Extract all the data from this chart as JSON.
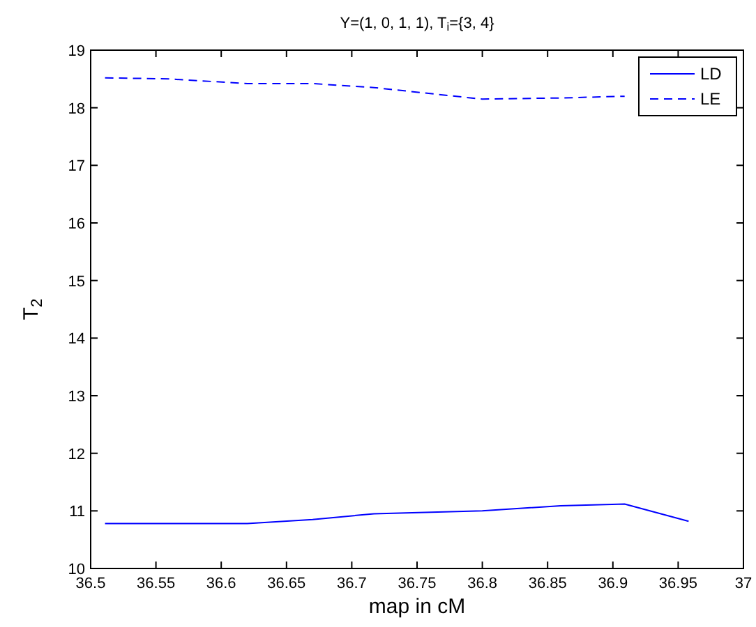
{
  "chart_data": {
    "type": "line",
    "title": "Y=(1, 0, 1, 1), T$_{i}$={3, 4}",
    "xlabel": "map in cM",
    "ylabel": "T$_{2}$",
    "x": [
      36.511,
      36.56,
      36.62,
      36.67,
      36.717,
      36.8,
      36.86,
      36.909,
      36.958
    ],
    "series": [
      {
        "name": "LD",
        "color": "#0000ff",
        "line_style": "solid",
        "values": [
          10.78,
          10.78,
          10.78,
          10.85,
          10.95,
          11.0,
          11.09,
          11.12,
          10.82
        ]
      },
      {
        "name": "LE",
        "color": "#0000ff",
        "line_style": "dashed",
        "values": [
          18.52,
          18.5,
          18.42,
          18.42,
          18.35,
          18.15,
          18.17,
          18.2,
          null
        ]
      }
    ],
    "xlim": [
      36.5,
      37
    ],
    "xticks": [
      {
        "value": 36.5,
        "label": "36.5"
      },
      36.55,
      36.6,
      36.65,
      36.7,
      36.75,
      36.8,
      36.85,
      36.9,
      36.95,
      {
        "value": 37,
        "label": "37"
      }
    ],
    "ylim": [
      10,
      19
    ],
    "yticks": [
      10,
      11,
      12,
      13,
      14,
      15,
      16,
      17,
      18,
      19
    ],
    "grid": false,
    "legend": "top right"
  }
}
